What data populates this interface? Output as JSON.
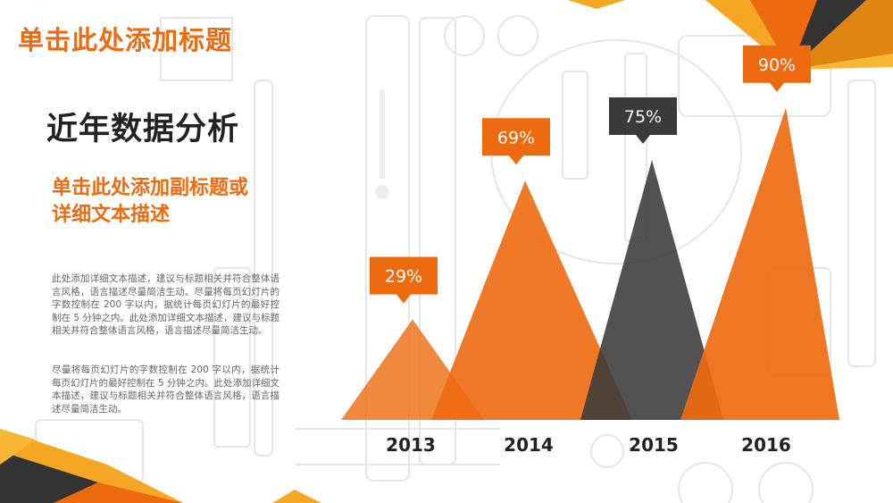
{
  "slide": {
    "title": "单击此处添加标题",
    "heading": "近年数据分析",
    "subtitle": [
      "单击此处添加副标题或",
      "详细文本描述"
    ],
    "paragraphs": [
      "此处添加详细文本描述，建议与标题相关并符合整体语言风格，语言描述尽量简洁生动。尽量将每页幻灯片的字数控制在 200 字以内，据统计每页幻灯片的最好控制在 5 分钟之内。此处添加详细文本描述，建议与标题相关并符合整体语言风格，语言描述尽量简洁生动。",
      "尽量将每页幻灯片的字数控制在 200 字以内，据统计每页幻灯片的最好控制在 5 分钟之内。此处添加详细文本描述，建议与标题相关并符合整体语言风格，语言描述尽量简洁生动。"
    ]
  },
  "colors": {
    "accent": "#ee6a0f",
    "dark": "#3a3a3a",
    "gold": "#f5a623"
  },
  "chart_data": {
    "type": "area",
    "title": "近年数据分析",
    "categories": [
      "2013",
      "2014",
      "2015",
      "2016"
    ],
    "values": [
      29,
      69,
      75,
      90
    ],
    "labels": [
      "29%",
      "69%",
      "75%",
      "90%"
    ],
    "ylim": [
      0,
      100
    ],
    "unit": "%",
    "series_colors": [
      "#ee6a0f",
      "#ee6a0f",
      "#3a3a3a",
      "#ee6a0f"
    ]
  }
}
